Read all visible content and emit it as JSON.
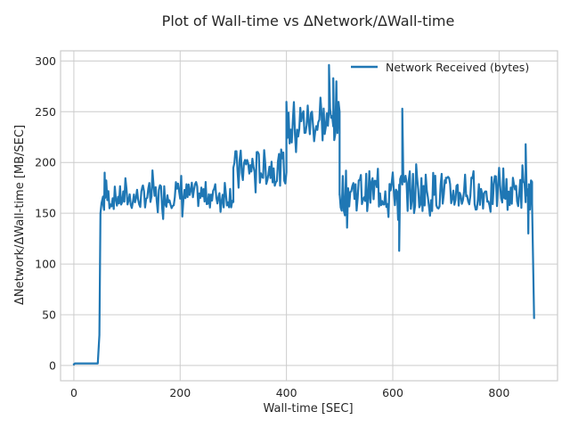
{
  "chart_data": {
    "type": "line",
    "title": "Plot of Wall-time vs ΔNetwork/ΔWall-time",
    "xlabel": "Wall-time [SEC]",
    "ylabel": "ΔNetwork/ΔWall-time [MB/SEC]",
    "xlim": [
      -25,
      910
    ],
    "ylim": [
      -15,
      310
    ],
    "xticks": [
      0,
      200,
      400,
      600,
      800
    ],
    "yticks": [
      0,
      50,
      100,
      150,
      200,
      250,
      300
    ],
    "grid": true,
    "legend_position": "top-right",
    "series": [
      {
        "name": "Network Received (bytes)",
        "color": "#1f77b4",
        "segments": [
          {
            "x_start": 0,
            "x_end": 45,
            "y_mean": 2,
            "y_jitter": 0
          },
          {
            "x_start": 55,
            "x_end": 130,
            "y_mean": 165,
            "y_jitter": 12
          },
          {
            "x_start": 130,
            "x_end": 300,
            "y_mean": 168,
            "y_jitter": 13
          },
          {
            "x_start": 300,
            "x_end": 400,
            "y_mean": 195,
            "y_jitter": 18
          },
          {
            "x_start": 400,
            "x_end": 500,
            "y_mean": 240,
            "y_jitter": 22
          },
          {
            "x_start": 500,
            "x_end": 700,
            "y_mean": 172,
            "y_jitter": 20
          },
          {
            "x_start": 700,
            "x_end": 862,
            "y_mean": 170,
            "y_jitter": 17
          }
        ],
        "anchor_points": [
          [
            0,
            1
          ],
          [
            3,
            2
          ],
          [
            45,
            2
          ],
          [
            48,
            30
          ],
          [
            50,
            150
          ],
          [
            52,
            160
          ],
          [
            55,
            160
          ],
          [
            58,
            190
          ],
          [
            480,
            296
          ],
          [
            488,
            283
          ],
          [
            495,
            240
          ],
          [
            500,
            170
          ],
          [
            612,
            113
          ],
          [
            618,
            253
          ],
          [
            850,
            218
          ],
          [
            855,
            130
          ],
          [
            862,
            160
          ],
          [
            866,
            46
          ]
        ],
        "sample_step": 2,
        "seed": 7
      }
    ]
  }
}
